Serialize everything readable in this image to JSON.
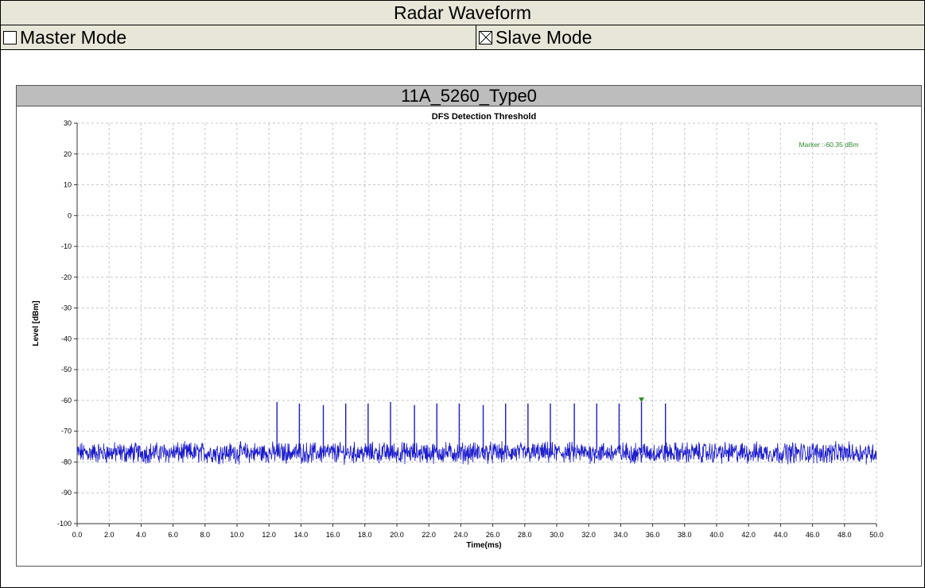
{
  "header": {
    "title": "Radar Waveform"
  },
  "modes": [
    {
      "label": "Master Mode",
      "checked": false
    },
    {
      "label": "Slave Mode",
      "checked": true
    }
  ],
  "plot": {
    "title": "11A_5260_Type0"
  },
  "chart_data": {
    "type": "line",
    "title": "DFS Detection Threshold",
    "xlabel": "Time(ms)",
    "ylabel": "Level [dBm]",
    "xlim": [
      0,
      50
    ],
    "ylim": [
      -100,
      30
    ],
    "xticks": [
      "0.0",
      "2.0",
      "4.0",
      "6.0",
      "8.0",
      "10.0",
      "12.0",
      "14.0",
      "16.0",
      "18.0",
      "20.0",
      "22.0",
      "24.0",
      "26.0",
      "28.0",
      "30.0",
      "32.0",
      "34.0",
      "36.0",
      "38.0",
      "40.0",
      "42.0",
      "44.0",
      "46.0",
      "48.0",
      "50.0"
    ],
    "yticks": [
      "30",
      "20",
      "10",
      "0",
      "-10",
      "-20",
      "-30",
      "-40",
      "-50",
      "-60",
      "-70",
      "-80",
      "-90",
      "-100"
    ],
    "grid": true,
    "noise_floor": -77,
    "pulses": [
      {
        "x": 12.5,
        "y": -60.5
      },
      {
        "x": 13.9,
        "y": -61
      },
      {
        "x": 15.4,
        "y": -61.5
      },
      {
        "x": 16.8,
        "y": -61
      },
      {
        "x": 18.2,
        "y": -61
      },
      {
        "x": 19.6,
        "y": -60.5
      },
      {
        "x": 21.1,
        "y": -61.5
      },
      {
        "x": 22.5,
        "y": -61
      },
      {
        "x": 23.9,
        "y": -61
      },
      {
        "x": 25.4,
        "y": -61.5
      },
      {
        "x": 26.8,
        "y": -61
      },
      {
        "x": 28.2,
        "y": -61
      },
      {
        "x": 29.6,
        "y": -61
      },
      {
        "x": 31.1,
        "y": -61
      },
      {
        "x": 32.5,
        "y": -61
      },
      {
        "x": 33.9,
        "y": -61
      },
      {
        "x": 35.3,
        "y": -60.35
      },
      {
        "x": 36.8,
        "y": -61
      }
    ],
    "marker": {
      "x": 35.3,
      "y": -60.35,
      "label": "Marker :-60.35 dBm"
    },
    "colors": {
      "trace": "#1a1acc",
      "marker": "#2e8b2e",
      "grid": "#c8c8c8"
    }
  }
}
